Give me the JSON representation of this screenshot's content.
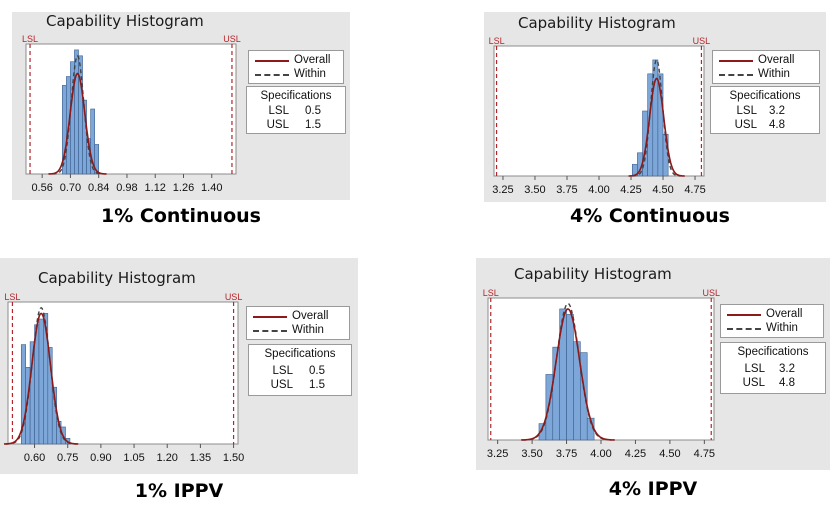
{
  "legend": {
    "overall": "Overall",
    "within": "Within"
  },
  "colors": {
    "panel_bg": "#e6e6e6",
    "bar_fill": "#7da7d8",
    "bar_stroke": "#3d5f8f",
    "overall": "#8b1a1a",
    "within": "#444444",
    "spec": "#b3262b"
  },
  "chart_data": [
    {
      "type": "bar",
      "title": "Capability Histogram",
      "caption": "1% Continuous",
      "specifications_title": "Specifications",
      "lsl_label": "LSL",
      "usl_label": "USL",
      "lsl": 0.5,
      "usl": 1.5,
      "lsl_text": "0.5",
      "usl_text": "1.5",
      "xlim": [
        0.48,
        1.52
      ],
      "xticks": [
        0.56,
        0.7,
        0.84,
        0.98,
        1.12,
        1.26,
        1.4
      ],
      "xtick_labels": [
        "0.56",
        "0.70",
        "0.84",
        "0.98",
        "1.12",
        "1.26",
        "1.40"
      ],
      "bin_edges": [
        0.66,
        0.68,
        0.7,
        0.72,
        0.74,
        0.76,
        0.78,
        0.8,
        0.82,
        0.84
      ],
      "counts": [
        30,
        33,
        38,
        42,
        40,
        25,
        12,
        22,
        10
      ],
      "ymax": 44,
      "overall": {
        "mean": 0.735,
        "sd": 0.036,
        "peak": 34
      },
      "within": {
        "mean": 0.735,
        "sd": 0.031,
        "peak": 40
      }
    },
    {
      "type": "bar",
      "title": "Capability Histogram",
      "caption": "4% Continuous",
      "specifications_title": "Specifications",
      "lsl_label": "LSL",
      "usl_label": "USL",
      "lsl": 3.2,
      "usl": 4.8,
      "lsl_text": "3.2",
      "usl_text": "4.8",
      "xlim": [
        3.18,
        4.82
      ],
      "xticks": [
        3.25,
        3.5,
        3.75,
        4.0,
        4.25,
        4.5,
        4.75
      ],
      "xtick_labels": [
        "3.25",
        "3.50",
        "3.75",
        "4.00",
        "4.25",
        "4.50",
        "4.75"
      ],
      "bin_edges": [
        4.26,
        4.3,
        4.34,
        4.38,
        4.42,
        4.46,
        4.5,
        4.54
      ],
      "counts": [
        5,
        10,
        28,
        44,
        50,
        44,
        18
      ],
      "ymax": 56,
      "overall": {
        "mean": 4.45,
        "sd": 0.055,
        "peak": 42
      },
      "within": {
        "mean": 4.45,
        "sd": 0.047,
        "peak": 50
      }
    },
    {
      "type": "bar",
      "title": "Capability Histogram",
      "caption": "1% IPPV",
      "specifications_title": "Specifications",
      "lsl_label": "LSL",
      "usl_label": "USL",
      "lsl": 0.5,
      "usl": 1.5,
      "lsl_text": "0.5",
      "usl_text": "1.5",
      "xlim": [
        0.48,
        1.52
      ],
      "xticks": [
        0.6,
        0.75,
        0.9,
        1.05,
        1.2,
        1.35,
        1.5
      ],
      "xtick_labels": [
        "0.60",
        "0.75",
        "0.90",
        "1.05",
        "1.20",
        "1.35",
        "1.50"
      ],
      "bin_edges": [
        0.54,
        0.56,
        0.58,
        0.6,
        0.62,
        0.64,
        0.66,
        0.68,
        0.7,
        0.72,
        0.74,
        0.76
      ],
      "counts": [
        35,
        27,
        36,
        42,
        44,
        46,
        34,
        20,
        8,
        6,
        2
      ],
      "ymax": 50,
      "overall": {
        "mean": 0.63,
        "sd": 0.042,
        "peak": 46
      },
      "within": {
        "mean": 0.63,
        "sd": 0.04,
        "peak": 48
      }
    },
    {
      "type": "bar",
      "title": "Capability Histogram",
      "caption": "4% IPPV",
      "specifications_title": "Specifications",
      "lsl_label": "LSL",
      "usl_label": "USL",
      "lsl": 3.2,
      "usl": 4.8,
      "lsl_text": "3.2",
      "usl_text": "4.8",
      "xlim": [
        3.18,
        4.82
      ],
      "xticks": [
        3.25,
        3.5,
        3.75,
        4.0,
        4.25,
        4.5,
        4.75
      ],
      "xtick_labels": [
        "3.25",
        "3.50",
        "3.75",
        "4.00",
        "4.25",
        "4.50",
        "4.75"
      ],
      "bin_edges": [
        3.55,
        3.6,
        3.65,
        3.7,
        3.75,
        3.8,
        3.85,
        3.9,
        3.95
      ],
      "counts": [
        6,
        24,
        34,
        48,
        46,
        36,
        32,
        8
      ],
      "ymax": 52,
      "overall": {
        "mean": 3.76,
        "sd": 0.085,
        "peak": 48
      },
      "within": {
        "mean": 3.76,
        "sd": 0.082,
        "peak": 50
      }
    }
  ]
}
